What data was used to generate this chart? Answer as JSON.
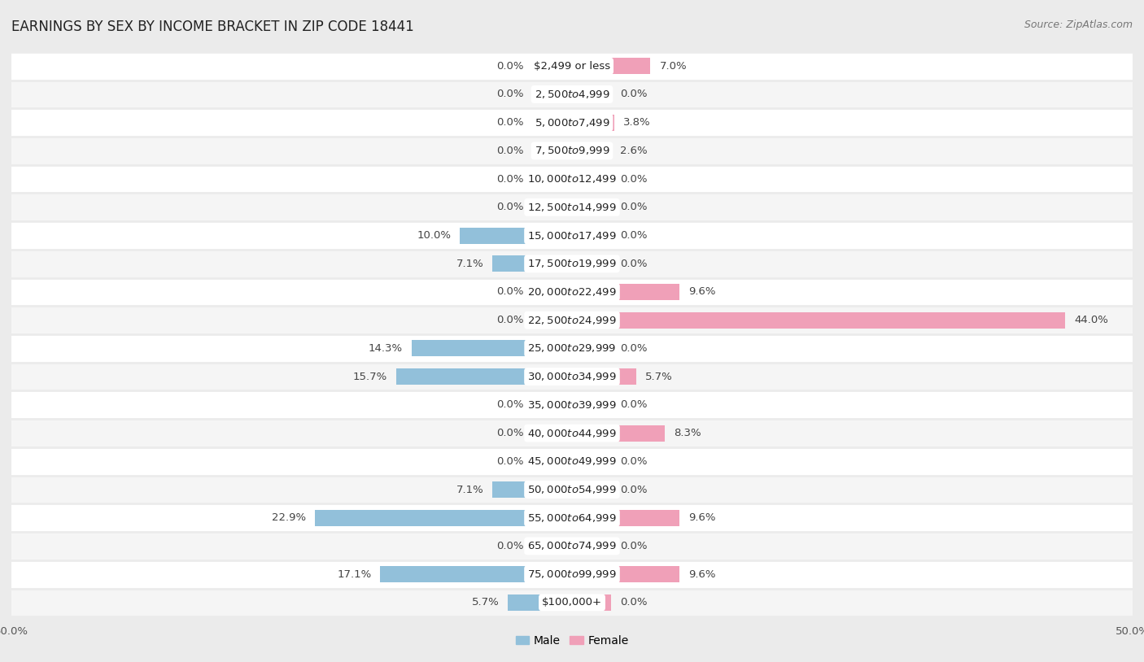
{
  "title": "EARNINGS BY SEX BY INCOME BRACKET IN ZIP CODE 18441",
  "source": "Source: ZipAtlas.com",
  "categories": [
    "$2,499 or less",
    "$2,500 to $4,999",
    "$5,000 to $7,499",
    "$7,500 to $9,999",
    "$10,000 to $12,499",
    "$12,500 to $14,999",
    "$15,000 to $17,499",
    "$17,500 to $19,999",
    "$20,000 to $22,499",
    "$22,500 to $24,999",
    "$25,000 to $29,999",
    "$30,000 to $34,999",
    "$35,000 to $39,999",
    "$40,000 to $44,999",
    "$45,000 to $49,999",
    "$50,000 to $54,999",
    "$55,000 to $64,999",
    "$65,000 to $74,999",
    "$75,000 to $99,999",
    "$100,000+"
  ],
  "male_values": [
    0.0,
    0.0,
    0.0,
    0.0,
    0.0,
    0.0,
    10.0,
    7.1,
    0.0,
    0.0,
    14.3,
    15.7,
    0.0,
    0.0,
    0.0,
    7.1,
    22.9,
    0.0,
    17.1,
    5.7
  ],
  "female_values": [
    7.0,
    0.0,
    3.8,
    2.6,
    0.0,
    0.0,
    0.0,
    0.0,
    9.6,
    44.0,
    0.0,
    5.7,
    0.0,
    8.3,
    0.0,
    0.0,
    9.6,
    0.0,
    9.6,
    0.0
  ],
  "male_color": "#92c0da",
  "female_color": "#f0a0b8",
  "background_color": "#ebebeb",
  "row_color": "#ffffff",
  "xlim": 50.0,
  "min_bar": 3.5,
  "bar_height": 0.58,
  "title_fontsize": 12,
  "label_fontsize": 9.5,
  "source_fontsize": 9,
  "legend_fontsize": 10,
  "cat_label_fontsize": 9.5
}
